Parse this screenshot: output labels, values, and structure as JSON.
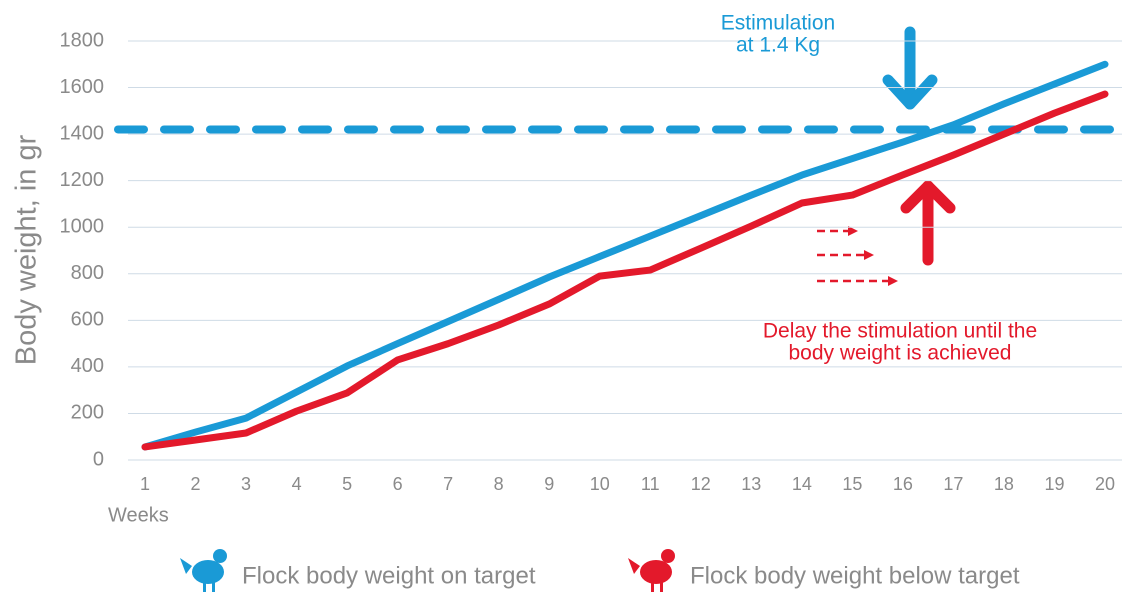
{
  "chart_data": {
    "type": "line",
    "y_label": "Body weight, in gr",
    "x_label": "Weeks",
    "categories": [
      "1",
      "2",
      "3",
      "4",
      "5",
      "6",
      "7",
      "8",
      "9",
      "10",
      "11",
      "12",
      "13",
      "14",
      "15",
      "16",
      "17",
      "18",
      "19",
      "20"
    ],
    "series": [
      {
        "name": "Flock body weight on target",
        "color": "#1a9ad6",
        "values": [
          56,
          120,
          180,
          292,
          404,
          500,
          595,
          690,
          786,
          874,
          962,
          1050,
          1138,
          1224,
          1295,
          1366,
          1440,
          1530,
          1615,
          1700
        ]
      },
      {
        "name": "Flock body weight below target",
        "color": "#e3192b",
        "values": [
          56,
          86,
          116,
          210,
          288,
          430,
          500,
          580,
          670,
          790,
          816,
          910,
          1005,
          1104,
          1138,
          1225,
          1310,
          1400,
          1490,
          1572
        ]
      }
    ],
    "reference_line": {
      "value": 1420,
      "color": "#1a9ad6"
    },
    "annotations": [
      {
        "lines": [
          "Estimulation",
          "at 1.4 Kg"
        ],
        "color": "#1a9ad6"
      },
      {
        "lines": [
          "Delay the stimulation until the",
          "body weight is achieved"
        ],
        "color": "#e3192b"
      }
    ],
    "ylim": [
      0,
      1800
    ],
    "yticks": [
      0,
      200,
      400,
      600,
      800,
      1000,
      1200,
      1400,
      1600,
      1800
    ],
    "grid": true
  }
}
